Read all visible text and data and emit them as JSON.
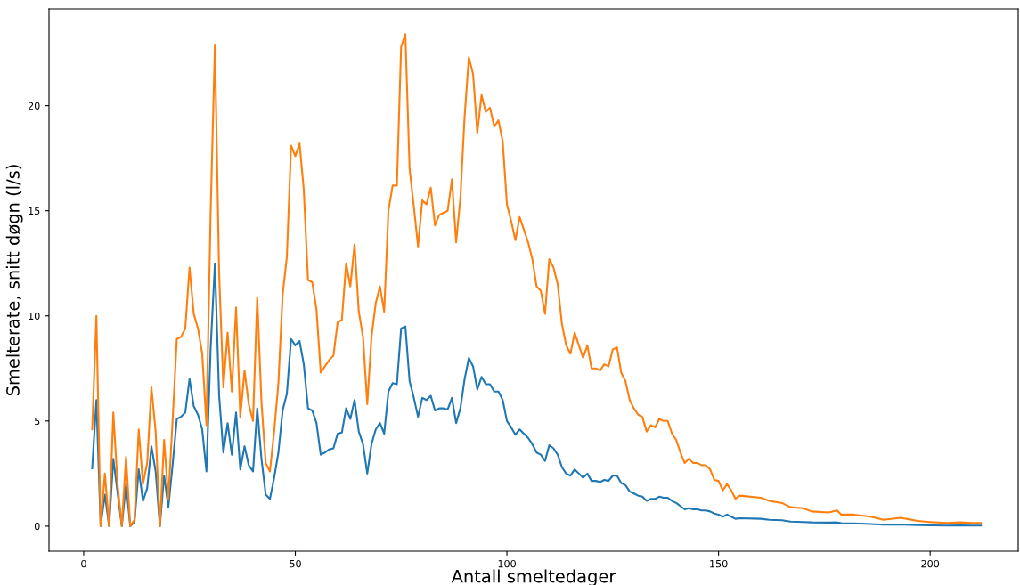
{
  "chart_data": {
    "type": "line",
    "xlabel": "Antall smeltedager",
    "ylabel": "Smelterate, snitt døgn (l/s)",
    "x": [
      2,
      3,
      4,
      5,
      6,
      7,
      8,
      9,
      10,
      11,
      12,
      13,
      14,
      15,
      16,
      17,
      18,
      19,
      20,
      21,
      22,
      23,
      24,
      25,
      26,
      27,
      28,
      29,
      30,
      31,
      32,
      33,
      34,
      35,
      36,
      37,
      38,
      39,
      40,
      41,
      42,
      43,
      44,
      45,
      46,
      47,
      48,
      49,
      50,
      51,
      52,
      53,
      54,
      55,
      56,
      57,
      58,
      59,
      60,
      61,
      62,
      63,
      64,
      65,
      66,
      67,
      68,
      69,
      70,
      71,
      72,
      73,
      74,
      75,
      76,
      77,
      78,
      79,
      80,
      81,
      82,
      83,
      84,
      85,
      86,
      87,
      88,
      89,
      90,
      91,
      92,
      93,
      94,
      95,
      96,
      97,
      98,
      99,
      100,
      101,
      102,
      103,
      104,
      105,
      106,
      107,
      108,
      109,
      110,
      111,
      112,
      113,
      114,
      115,
      116,
      117,
      118,
      119,
      120,
      121,
      122,
      123,
      124,
      125,
      126,
      127,
      128,
      129,
      130,
      131,
      132,
      133,
      134,
      135,
      136,
      137,
      138,
      139,
      140,
      141,
      142,
      143,
      144,
      145,
      146,
      147,
      148,
      149,
      150,
      151,
      152,
      153,
      154,
      155,
      160,
      162,
      165,
      167,
      170,
      172,
      176,
      178,
      179,
      182,
      186,
      189,
      193,
      197,
      200,
      204,
      207,
      210,
      212
    ],
    "series": [
      {
        "color": "#1f77b4",
        "values": [
          2.75,
          6.0,
          0,
          1.5,
          0,
          3.2,
          1.6,
          0,
          2.0,
          0,
          0.2,
          2.7,
          1.2,
          1.8,
          3.8,
          2.6,
          0,
          2.4,
          0.9,
          2.9,
          5.1,
          5.2,
          5.4,
          7.0,
          5.7,
          5.3,
          4.6,
          2.6,
          8.5,
          12.5,
          6.2,
          3.5,
          4.9,
          3.4,
          5.4,
          2.7,
          3.8,
          2.9,
          2.6,
          5.6,
          3.2,
          1.5,
          1.3,
          2.3,
          3.5,
          5.5,
          6.3,
          8.9,
          8.6,
          8.8,
          7.7,
          5.6,
          5.5,
          4.9,
          3.4,
          3.5,
          3.65,
          3.7,
          4.4,
          4.45,
          5.6,
          5.1,
          6.0,
          4.5,
          3.9,
          2.5,
          3.9,
          4.6,
          4.9,
          4.4,
          6.4,
          6.8,
          6.75,
          9.4,
          9.5,
          6.9,
          6.1,
          5.2,
          6.1,
          6.0,
          6.2,
          5.5,
          5.6,
          5.6,
          5.55,
          6.1,
          4.9,
          5.6,
          7.0,
          8.0,
          7.6,
          6.5,
          7.1,
          6.75,
          6.75,
          6.4,
          6.4,
          6.0,
          5.0,
          4.7,
          4.35,
          4.6,
          4.4,
          4.2,
          3.9,
          3.5,
          3.4,
          3.1,
          3.85,
          3.7,
          3.4,
          2.8,
          2.5,
          2.4,
          2.7,
          2.5,
          2.3,
          2.5,
          2.15,
          2.15,
          2.1,
          2.2,
          2.15,
          2.4,
          2.4,
          2.05,
          1.95,
          1.65,
          1.55,
          1.45,
          1.4,
          1.2,
          1.3,
          1.3,
          1.4,
          1.35,
          1.35,
          1.2,
          1.1,
          0.95,
          0.8,
          0.85,
          0.8,
          0.8,
          0.75,
          0.75,
          0.7,
          0.6,
          0.55,
          0.45,
          0.55,
          0.45,
          0.35,
          0.38,
          0.35,
          0.3,
          0.28,
          0.22,
          0.2,
          0.18,
          0.17,
          0.18,
          0.14,
          0.13,
          0.1,
          0.07,
          0.08,
          0.05,
          0.04,
          0.03,
          0.04,
          0.03,
          0.03
        ]
      },
      {
        "color": "#ff7f0e",
        "values": [
          4.6,
          10.0,
          0,
          2.5,
          0,
          5.4,
          2.0,
          0,
          3.3,
          0,
          0.3,
          4.6,
          2.0,
          3.0,
          6.6,
          4.5,
          0,
          4.1,
          1.3,
          5.0,
          8.9,
          9.0,
          9.4,
          12.3,
          10.1,
          9.4,
          8.2,
          4.8,
          15,
          22.9,
          12,
          6.6,
          9.2,
          6.4,
          10.4,
          5.2,
          7.4,
          5.8,
          5.0,
          10.9,
          5.9,
          3.0,
          2.6,
          4.5,
          6.8,
          11,
          12.8,
          18.1,
          17.6,
          18.2,
          16,
          11.7,
          11.6,
          10.3,
          7.3,
          7.6,
          7.9,
          8.1,
          9.7,
          9.8,
          12.5,
          11.4,
          13.4,
          10.2,
          9.0,
          5.8,
          9.0,
          10.6,
          11.4,
          10.2,
          15,
          16.2,
          16.2,
          22.8,
          23.4,
          17,
          15.2,
          13.3,
          15.5,
          15.3,
          16.1,
          14.3,
          14.8,
          14.9,
          15,
          16.5,
          13.5,
          15.6,
          19.5,
          22.3,
          21.5,
          18.7,
          20.5,
          19.7,
          19.9,
          19.0,
          19.3,
          18.3,
          15.3,
          14.5,
          13.6,
          14.7,
          14.1,
          13.5,
          12.7,
          11.4,
          11.2,
          10.1,
          12.7,
          12.3,
          11.5,
          9.6,
          8.6,
          8.2,
          9.2,
          8.6,
          8.0,
          8.6,
          7.5,
          7.5,
          7.4,
          7.7,
          7.6,
          8.4,
          8.5,
          7.3,
          6.9,
          6.0,
          5.6,
          5.3,
          5.2,
          4.5,
          4.8,
          4.7,
          5.1,
          5.0,
          5.0,
          4.4,
          4.1,
          3.5,
          3.0,
          3.2,
          3.0,
          3.0,
          2.9,
          2.9,
          2.7,
          2.2,
          2.15,
          1.7,
          2.0,
          1.7,
          1.3,
          1.45,
          1.35,
          1.2,
          1.1,
          0.9,
          0.85,
          0.7,
          0.65,
          0.75,
          0.55,
          0.55,
          0.45,
          0.3,
          0.4,
          0.25,
          0.2,
          0.15,
          0.18,
          0.15,
          0.15
        ]
      }
    ],
    "xlim": [
      -8.2,
      220.8
    ],
    "ylim": [
      -1.19,
      24.6
    ],
    "xticks": [
      0,
      50,
      100,
      150,
      200
    ],
    "yticks": [
      0,
      5,
      10,
      15,
      20
    ],
    "grid": false,
    "legend": false,
    "marker": "none",
    "line_style": "solid"
  }
}
